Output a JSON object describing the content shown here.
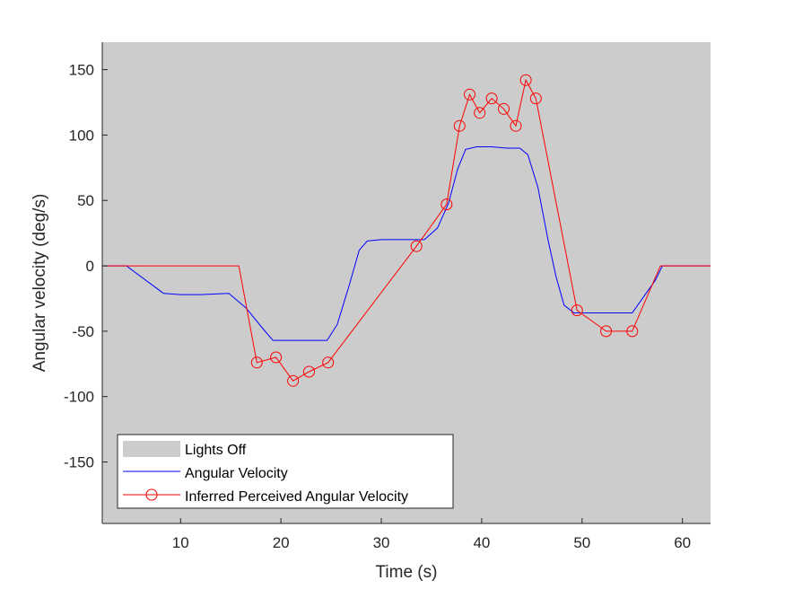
{
  "chart_data": {
    "type": "line",
    "xlabel": "Time (s)",
    "ylabel": "Angular velocity (deg/s)",
    "xlim": [
      2.2,
      62.8
    ],
    "ylim": [
      -197,
      171
    ],
    "xticks": [
      10,
      20,
      30,
      40,
      50,
      60
    ],
    "yticks": [
      -150,
      -100,
      -50,
      0,
      50,
      100,
      150
    ],
    "grid": false,
    "background_color": "#cccccc",
    "legend_placement": "bottom-left",
    "legend": [
      {
        "label": "Lights Off",
        "kind": "patch",
        "color": "#cccccc"
      },
      {
        "label": "Angular Velocity",
        "kind": "line",
        "color": "#0000ff"
      },
      {
        "label": "Inferred Perceived Angular Velocity",
        "kind": "line-marker",
        "color": "#ff0000"
      }
    ],
    "series": [
      {
        "name": "Angular Velocity",
        "color": "#0000ff",
        "points": [
          [
            2.2,
            0
          ],
          [
            4.6,
            0
          ],
          [
            8.3,
            -21
          ],
          [
            10,
            -22
          ],
          [
            12,
            -22
          ],
          [
            14.8,
            -21
          ],
          [
            16.5,
            -32
          ],
          [
            18.2,
            -48
          ],
          [
            19.2,
            -57
          ],
          [
            21,
            -57
          ],
          [
            23,
            -57
          ],
          [
            24.6,
            -57
          ],
          [
            25.6,
            -45
          ],
          [
            26.8,
            -15
          ],
          [
            27.8,
            12
          ],
          [
            28.6,
            19
          ],
          [
            30,
            20
          ],
          [
            32,
            20
          ],
          [
            34.3,
            20
          ],
          [
            35.6,
            29
          ],
          [
            36.7,
            48
          ],
          [
            37.6,
            74
          ],
          [
            38.4,
            89
          ],
          [
            39.5,
            91
          ],
          [
            41,
            91
          ],
          [
            42.5,
            90
          ],
          [
            43.8,
            90
          ],
          [
            44.6,
            85
          ],
          [
            45.6,
            60
          ],
          [
            46.6,
            20
          ],
          [
            47.4,
            -8
          ],
          [
            48.2,
            -30
          ],
          [
            49.2,
            -36
          ],
          [
            51,
            -36
          ],
          [
            53,
            -36
          ],
          [
            55,
            -36
          ],
          [
            57.3,
            -11
          ],
          [
            58,
            0
          ],
          [
            62.8,
            0
          ]
        ]
      },
      {
        "name": "Inferred Perceived Angular Velocity",
        "color": "#ff0000",
        "points": [
          [
            2.2,
            0
          ],
          [
            15.8,
            0
          ],
          [
            17.6,
            -74
          ],
          [
            19.5,
            -70
          ],
          [
            21.2,
            -88
          ],
          [
            22.8,
            -81
          ],
          [
            24.7,
            -74
          ],
          [
            33.5,
            15
          ],
          [
            36.5,
            47
          ],
          [
            37.8,
            107
          ],
          [
            38.8,
            131
          ],
          [
            39.8,
            117
          ],
          [
            41,
            128
          ],
          [
            42.2,
            120
          ],
          [
            43.4,
            107
          ],
          [
            44.4,
            142
          ],
          [
            45.4,
            128
          ],
          [
            49.5,
            -34
          ],
          [
            52.4,
            -50
          ],
          [
            55,
            -50
          ],
          [
            57.8,
            0
          ],
          [
            62.8,
            0
          ]
        ],
        "markers": [
          [
            17.6,
            -74
          ],
          [
            19.5,
            -70
          ],
          [
            21.2,
            -88
          ],
          [
            22.8,
            -81
          ],
          [
            24.7,
            -74
          ],
          [
            33.5,
            15
          ],
          [
            36.5,
            47
          ],
          [
            37.8,
            107
          ],
          [
            38.8,
            131
          ],
          [
            39.8,
            117
          ],
          [
            41,
            128
          ],
          [
            42.2,
            120
          ],
          [
            43.4,
            107
          ],
          [
            44.4,
            142
          ],
          [
            45.4,
            128
          ],
          [
            49.5,
            -34
          ],
          [
            52.4,
            -50
          ],
          [
            55,
            -50
          ]
        ]
      }
    ]
  }
}
